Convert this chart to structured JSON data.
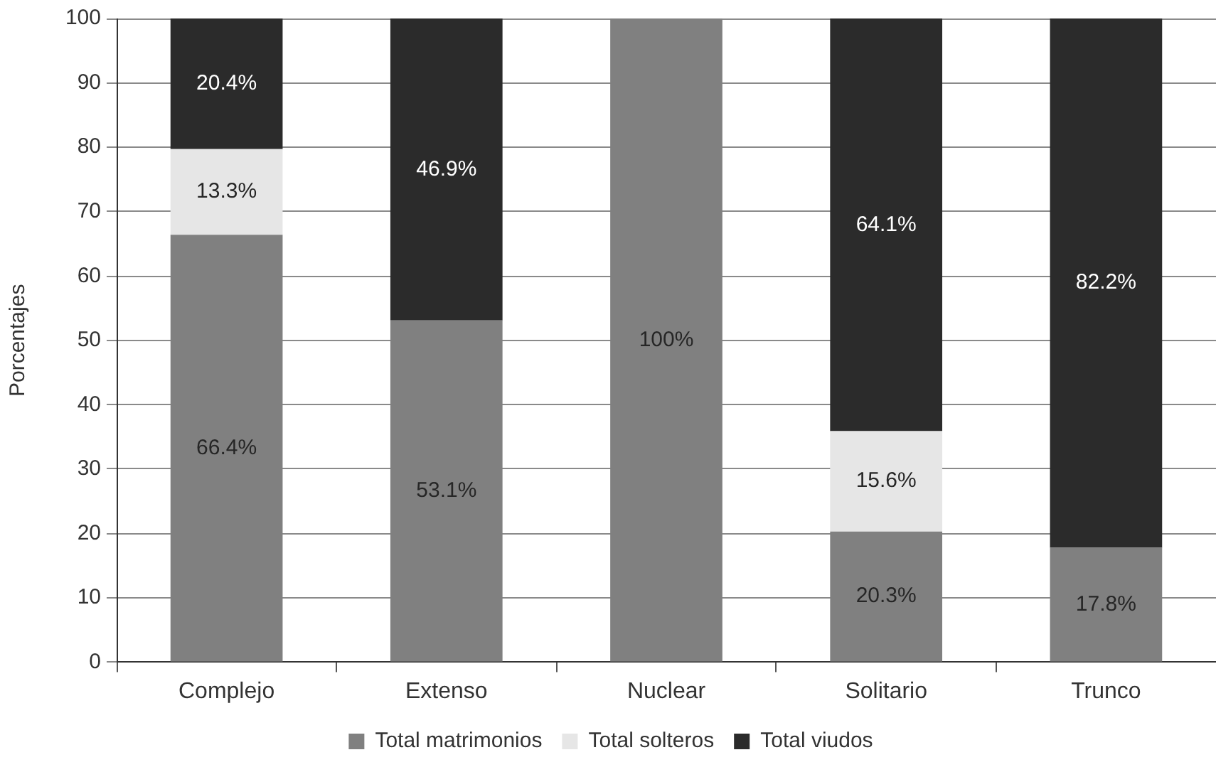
{
  "chart_data": {
    "type": "bar",
    "ylabel": "Porcentajes",
    "categories": [
      "Complejo",
      "Extenso",
      "Nuclear",
      "Solitario",
      "Trunco"
    ],
    "stacked": true,
    "series": [
      {
        "name": "Total matrimonios",
        "color": "#808080",
        "values": [
          66.4,
          53.1,
          100,
          20.3,
          17.8
        ],
        "value_labels": [
          "66.4%",
          "53.1%",
          "100%",
          "20.3%",
          "17.8%"
        ]
      },
      {
        "name": "Total solteros",
        "color": "#e6e6e6",
        "values": [
          13.3,
          null,
          null,
          15.6,
          null
        ],
        "value_labels": [
          "13.3%",
          null,
          null,
          "15.6%",
          null
        ]
      },
      {
        "name": "Total viudos",
        "color": "#2b2b2b",
        "values": [
          20.4,
          46.9,
          null,
          64.1,
          82.2
        ],
        "value_labels": [
          "20.4%",
          "46.9%",
          null,
          "64.1%",
          "82.2%"
        ]
      }
    ],
    "ylim": [
      0,
      100
    ],
    "yticks": [
      0,
      10,
      20,
      30,
      40,
      50,
      60,
      70,
      80,
      90,
      100
    ],
    "grid": "y",
    "legend": "bottom"
  }
}
